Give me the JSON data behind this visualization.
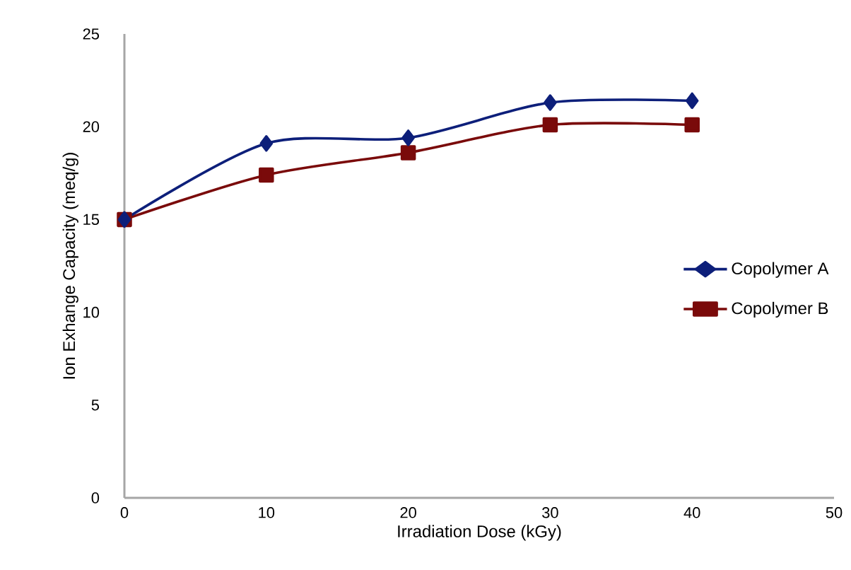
{
  "chart_data": {
    "type": "line",
    "xlabel": "Irradiation Dose (kGy)",
    "ylabel": "Ion Exhange Capacity (meq/g)",
    "x": [
      0,
      10,
      20,
      30,
      40
    ],
    "xlim": [
      0,
      50
    ],
    "xticks": [
      0,
      10,
      20,
      30,
      40,
      50
    ],
    "ylim": [
      0,
      25
    ],
    "yticks": [
      0,
      5,
      10,
      15,
      20,
      25
    ],
    "series": [
      {
        "name": "Copolymer A",
        "color": "#0d1f7a",
        "marker": "diamond",
        "values": [
          15,
          19.1,
          19.4,
          21.3,
          21.4
        ]
      },
      {
        "name": "Copolymer B",
        "color": "#7a0a0a",
        "marker": "square",
        "values": [
          15,
          17.4,
          18.6,
          20.1,
          20.1
        ]
      }
    ],
    "grid": false,
    "legend": "right",
    "line_style": "solid"
  }
}
